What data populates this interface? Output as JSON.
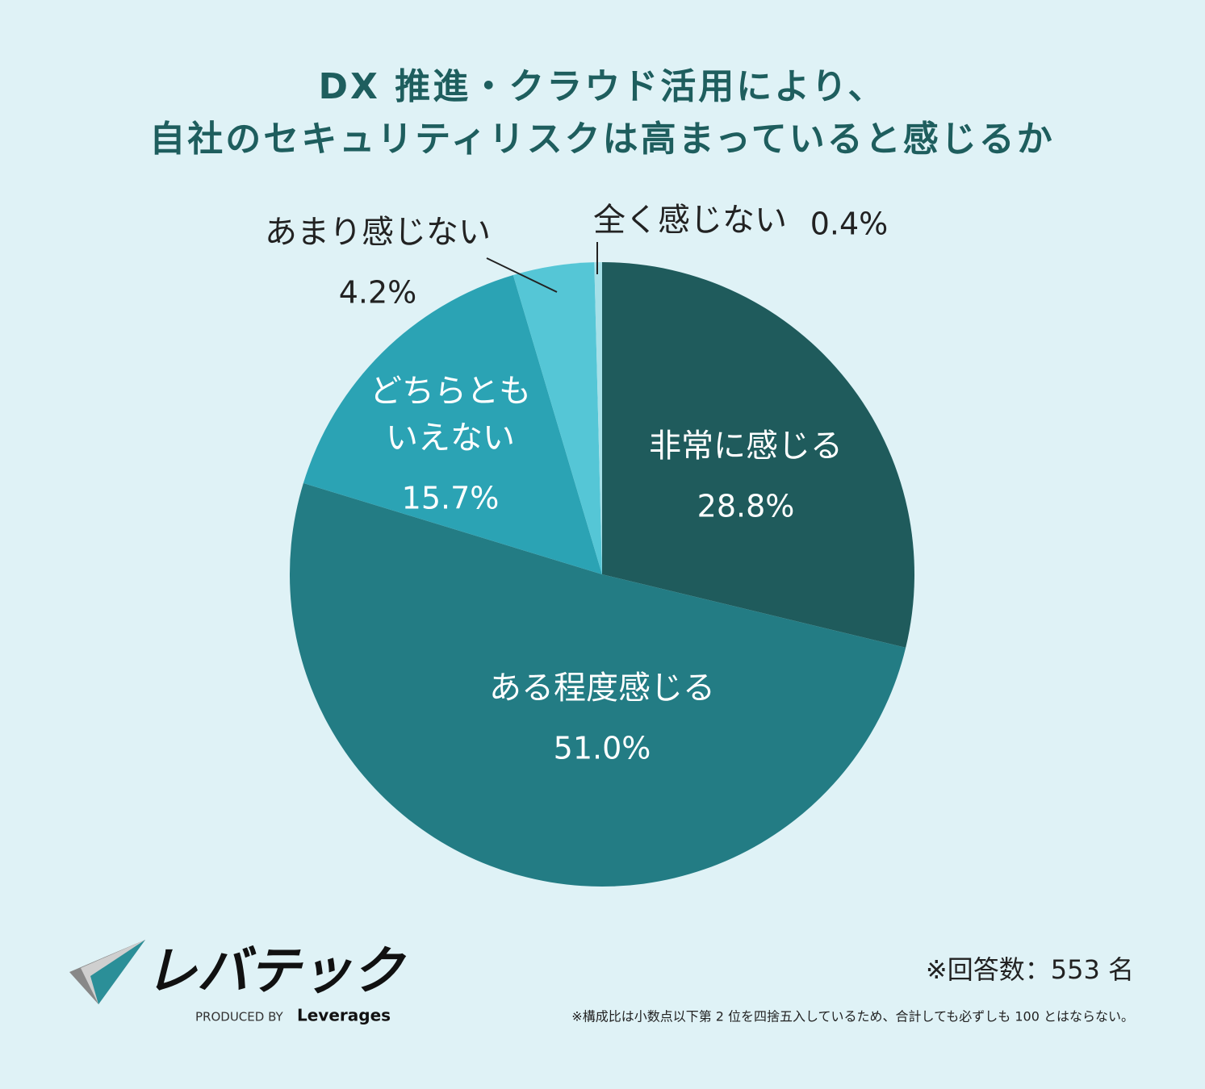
{
  "chart_data": {
    "type": "pie",
    "title": [
      "DX 推進・クラウド活用により、",
      "自社のセキュリティリスクは高まっていると感じるか"
    ],
    "categories": [
      "非常に感じる",
      "ある程度感じる",
      "どちらとも\nいえない",
      "あまり感じない",
      "全く感じない"
    ],
    "values": [
      28.8,
      51.0,
      15.7,
      4.2,
      0.4
    ],
    "value_labels": [
      "28.8%",
      "51.0%",
      "15.7%",
      "4.2%",
      "0.4%"
    ],
    "colors": [
      "#1f5b5c",
      "#237c84",
      "#2ba3b4",
      "#55c6d6",
      "#a6e0e8"
    ]
  },
  "footer": {
    "respondents": "※回答数：553 名",
    "note": "※構成比は小数点以下第 2 位を四捨五入しているため、合計しても必ずしも 100 とはならない。",
    "logo": "レバテック",
    "produced_by": "PRODUCED BY",
    "brand": "Leverages"
  }
}
